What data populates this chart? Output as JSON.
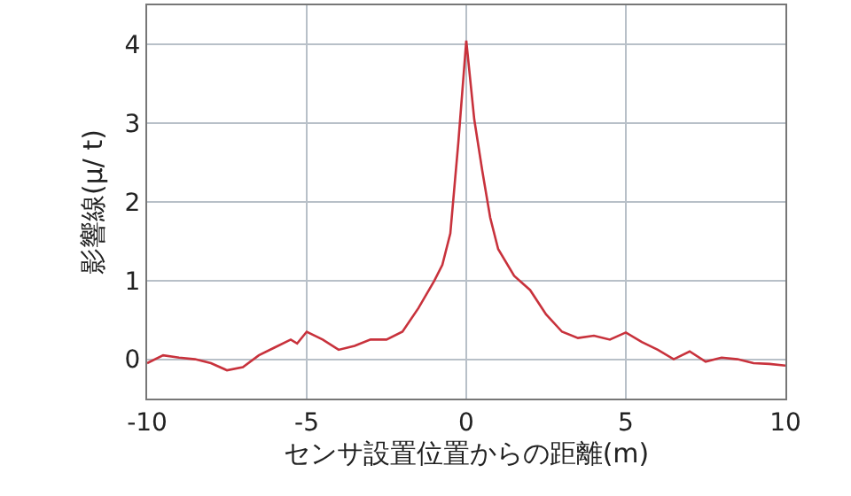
{
  "chart_data": {
    "type": "line",
    "xlabel": "センサ設置位置からの距離(m)",
    "ylabel": "影響線(μ/ t)",
    "x": [
      -10,
      -9.5,
      -9,
      -8.5,
      -8,
      -7.5,
      -7,
      -6.5,
      -6,
      -5.5,
      -5.3,
      -5,
      -4.5,
      -4,
      -3.5,
      -3,
      -2.5,
      -2,
      -1.5,
      -1,
      -0.75,
      -0.5,
      -0.25,
      0,
      0.25,
      0.5,
      0.75,
      1,
      1.5,
      2,
      2.5,
      3,
      3.5,
      4,
      4.5,
      5,
      5.5,
      6,
      6.5,
      7,
      7.5,
      8,
      8.5,
      9,
      9.5,
      10
    ],
    "series": [
      {
        "color": "#c8323c",
        "values": [
          -0.05,
          0.05,
          0.02,
          0,
          -0.05,
          -0.14,
          -0.1,
          0.05,
          0.15,
          0.25,
          0.2,
          0.35,
          0.25,
          0.12,
          0.17,
          0.25,
          0.25,
          0.35,
          0.65,
          1.0,
          1.2,
          1.6,
          2.75,
          4.05,
          3.05,
          2.4,
          1.8,
          1.4,
          1.06,
          0.88,
          0.57,
          0.35,
          0.27,
          0.3,
          0.25,
          0.34,
          0.22,
          0.12,
          0,
          0.1,
          -0.03,
          0.02,
          0,
          -0.05,
          -0.06,
          -0.08
        ]
      }
    ],
    "xlim": [
      -10,
      10
    ],
    "xticks": [
      -10,
      -5,
      0,
      5,
      10
    ],
    "ylim": [
      -0.5,
      4.5
    ],
    "yticks": [
      0,
      1,
      2,
      3,
      4
    ],
    "grid": true,
    "marker": "none",
    "line_style": "solid"
  }
}
